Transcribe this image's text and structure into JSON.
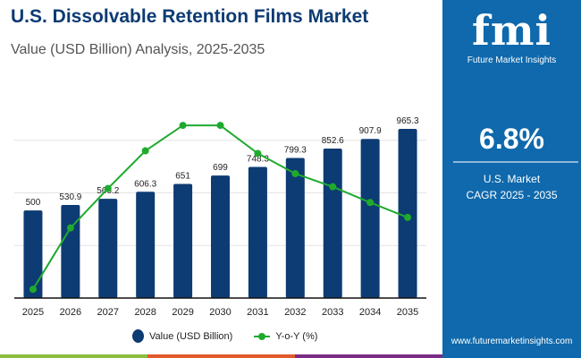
{
  "header": {
    "title": "U.S. Dissolvable Retention Films Market",
    "subtitle": "Value (USD Billion) Analysis, 2025-2035"
  },
  "panel": {
    "logo_mark": "fmi",
    "logo_text": "Future Market Insights",
    "cagr_value": "6.8%",
    "cagr_label_1": "U.S. Market",
    "cagr_label_2": "CAGR 2025 - 2035",
    "url": "www.futuremarketinsights.com"
  },
  "legend": {
    "bar_label": "Value (USD Billion)",
    "line_label": "Y-o-Y (%)"
  },
  "colors": {
    "bar": "#0d3b73",
    "line": "#1faa2e",
    "panel": "#0f69ac",
    "strip": [
      "#8bbd3f",
      "#e2592a",
      "#7b2d86"
    ]
  },
  "chart_data": {
    "type": "bar",
    "categories": [
      "2025",
      "2026",
      "2027",
      "2028",
      "2029",
      "2030",
      "2031",
      "2032",
      "2033",
      "2034",
      "2035"
    ],
    "series": [
      {
        "name": "Value (USD Billion)",
        "type": "bar",
        "values": [
          500,
          530.9,
          566.2,
          606.3,
          651,
          699,
          748.3,
          799.3,
          852.6,
          907.9,
          965.3
        ],
        "data_labels": [
          "500",
          "530.9",
          "566.2",
          "606.3",
          "651",
          "699",
          "748.3",
          "799.3",
          "852.6",
          "907.9",
          "965.3"
        ]
      },
      {
        "name": "Y-o-Y (%)",
        "type": "line",
        "axis": "secondary",
        "values": [
          5.5,
          6.2,
          6.65,
          7.08,
          7.37,
          7.37,
          7.05,
          6.82,
          6.67,
          6.49,
          6.32
        ]
      }
    ],
    "ylim": [
      0,
      1200
    ],
    "y2lim": [
      5.4,
      7.8
    ],
    "grid": true,
    "legend_position": "bottom"
  }
}
